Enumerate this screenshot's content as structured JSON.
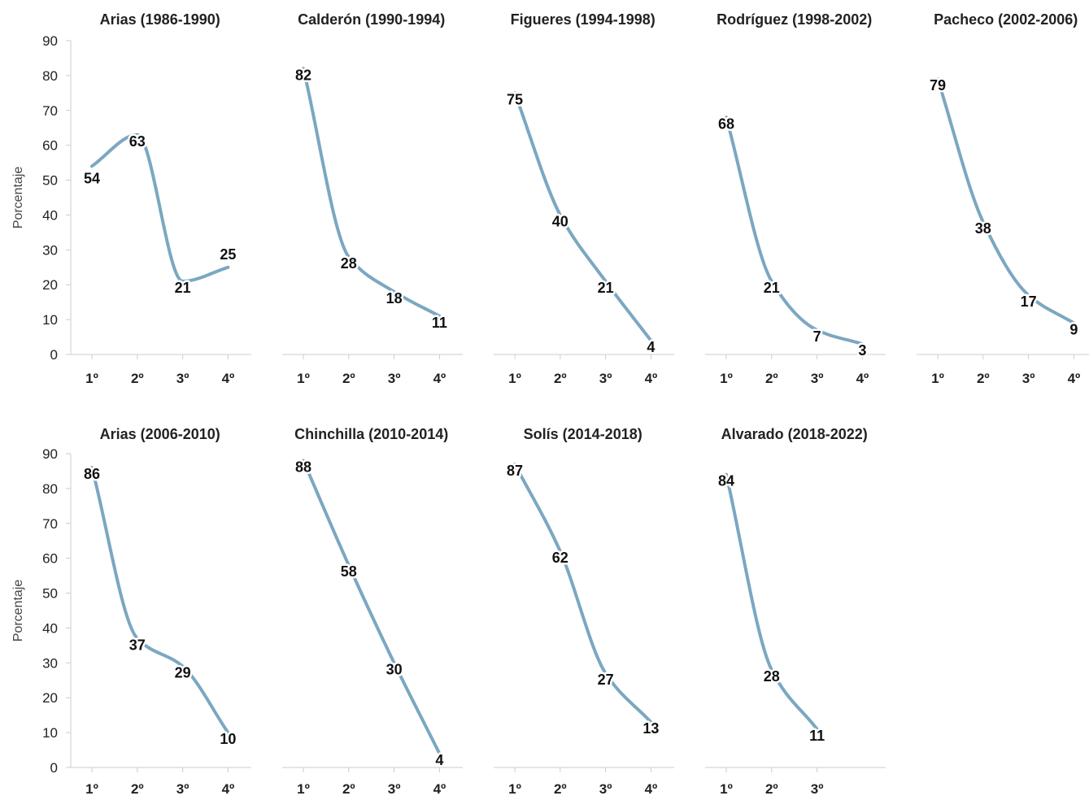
{
  "colors": {
    "line": "#7ba7c1",
    "text": "#111111",
    "axis": "#cccccc"
  },
  "chart_data": {
    "type": "line",
    "y_axis": {
      "label": "Porcentaje",
      "ylim": [
        0,
        90
      ],
      "ticks": [
        0,
        10,
        20,
        30,
        40,
        50,
        60,
        70,
        80,
        90
      ]
    },
    "grid": false,
    "panels": [
      {
        "title": "Arias (1986-1990)",
        "categories": [
          "1º",
          "2º",
          "3º",
          "4º"
        ],
        "values": [
          54,
          63,
          21,
          25
        ]
      },
      {
        "title": "Calderón (1990-1994)",
        "categories": [
          "1º",
          "2º",
          "3º",
          "4º"
        ],
        "values": [
          82,
          28,
          18,
          11
        ]
      },
      {
        "title": "Figueres (1994-1998)",
        "categories": [
          "1º",
          "2º",
          "3º",
          "4º"
        ],
        "values": [
          75,
          40,
          21,
          4
        ]
      },
      {
        "title": "Rodríguez (1998-2002)",
        "categories": [
          "1º",
          "2º",
          "3º",
          "4º"
        ],
        "values": [
          68,
          21,
          7,
          3
        ]
      },
      {
        "title": "Pacheco (2002-2006)",
        "categories": [
          "1º",
          "2º",
          "3º",
          "4º"
        ],
        "values": [
          79,
          38,
          17,
          9
        ]
      },
      {
        "title": "Arias (2006-2010)",
        "categories": [
          "1º",
          "2º",
          "3º",
          "4º"
        ],
        "values": [
          86,
          37,
          29,
          10
        ]
      },
      {
        "title": "Chinchilla (2010-2014)",
        "categories": [
          "1º",
          "2º",
          "3º",
          "4º"
        ],
        "values": [
          88,
          58,
          30,
          4
        ]
      },
      {
        "title": "Solís (2014-2018)",
        "categories": [
          "1º",
          "2º",
          "3º",
          "4º"
        ],
        "values": [
          87,
          62,
          27,
          13
        ]
      },
      {
        "title": "Alvarado (2018-2022)",
        "categories": [
          "1º",
          "2º",
          "3º"
        ],
        "values": [
          84,
          28,
          11
        ]
      }
    ]
  }
}
